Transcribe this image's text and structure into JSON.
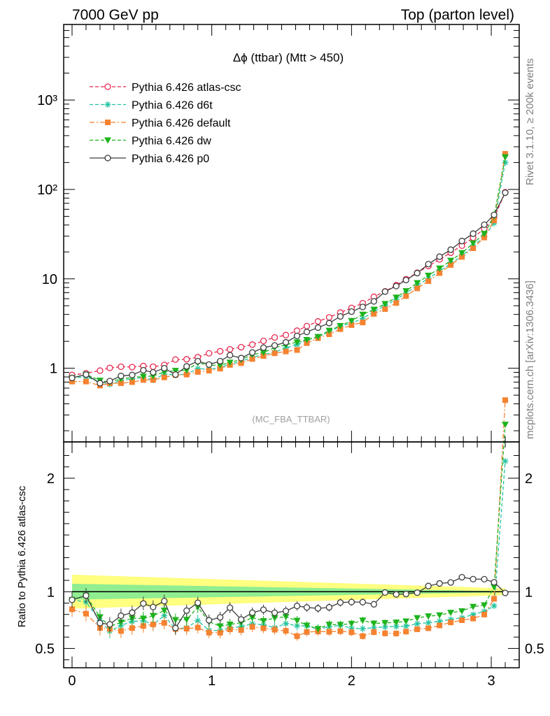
{
  "header": {
    "left_title": "7000 GeV pp",
    "right_title": "Top (parton level)"
  },
  "side_labels": {
    "rivet": "Rivet 3.1.10, ≥ 200k events",
    "mcplots": "mcplots.cern.ch [arXiv:1306.3436]"
  },
  "chart_data": {
    "type": "line",
    "title": "Δϕ (ttbar) (Mtt > 450)",
    "analysis_tag": "(MC_FBA_TTBAR)",
    "main": {
      "yscale": "log",
      "ylim": [
        0.15,
        7000
      ],
      "ytick_labels": [
        "1",
        "10",
        "10²",
        "10³"
      ],
      "ytick_values": [
        1,
        10,
        100,
        1000
      ]
    },
    "ratio": {
      "ylabel": "Ratio to Pythia 6.426 atlas-csc",
      "ylim": [
        0.33,
        2.32
      ],
      "ytick_labels": [
        "0.5",
        "1",
        "2"
      ],
      "ytick_values": [
        0.5,
        1,
        2
      ],
      "band_half_width_start": [
        0.07,
        0.15
      ],
      "band_half_width_end": [
        0.005,
        0.03
      ],
      "band_colors": [
        "#90ee90",
        "#ffff80"
      ]
    },
    "xlim": [
      -0.06,
      3.2
    ],
    "xtick_labels": [
      "0",
      "1",
      "2",
      "3"
    ],
    "xtick_values": [
      0,
      1,
      2,
      3
    ],
    "x": [
      0.0,
      0.1,
      0.2,
      0.27,
      0.35,
      0.43,
      0.51,
      0.58,
      0.66,
      0.74,
      0.82,
      0.9,
      0.98,
      1.06,
      1.13,
      1.21,
      1.29,
      1.37,
      1.45,
      1.53,
      1.61,
      1.68,
      1.76,
      1.84,
      1.92,
      2.0,
      2.08,
      2.16,
      2.24,
      2.32,
      2.39,
      2.47,
      2.55,
      2.63,
      2.71,
      2.79,
      2.87,
      2.95,
      3.02,
      3.1
    ],
    "series": [
      {
        "name": "Pythia 6.426 atlas-csc",
        "color": "#e8294f",
        "marker": "circle-open",
        "dash": "5,3",
        "values": [
          0.84,
          0.88,
          0.94,
          1.01,
          1.04,
          1.03,
          1.06,
          1.04,
          1.09,
          1.25,
          1.26,
          1.33,
          1.47,
          1.55,
          1.63,
          1.72,
          1.84,
          2.02,
          2.21,
          2.35,
          2.63,
          2.96,
          3.34,
          3.71,
          4.2,
          4.73,
          5.34,
          6.3,
          7.25,
          8.5,
          9.9,
          11.7,
          13.9,
          16.5,
          19.6,
          23.5,
          28.8,
          36.3,
          48.0,
          93.0
        ]
      },
      {
        "name": "Pythia 6.426 d6t",
        "color": "#22c4a0",
        "marker": "asterisk",
        "dash": "5,3",
        "values": [
          0.78,
          0.8,
          0.7,
          0.66,
          0.73,
          0.76,
          0.79,
          0.74,
          0.86,
          0.84,
          0.86,
          0.99,
          0.97,
          1.02,
          1.11,
          1.19,
          1.32,
          1.43,
          1.51,
          1.69,
          1.84,
          2.07,
          2.24,
          2.56,
          2.96,
          3.21,
          3.6,
          4.3,
          5.0,
          5.9,
          6.9,
          8.4,
          10.1,
          12.2,
          14.8,
          18.1,
          23.0,
          30.0,
          42.0,
          200.0
        ]
      },
      {
        "name": "Pythia 6.426 default",
        "color": "#f58230",
        "marker": "square",
        "dash": "7,3,2,3",
        "values": [
          0.71,
          0.71,
          0.64,
          0.68,
          0.68,
          0.7,
          0.74,
          0.74,
          0.79,
          0.84,
          0.85,
          0.91,
          0.94,
          0.99,
          1.09,
          1.14,
          1.27,
          1.37,
          1.47,
          1.54,
          1.6,
          1.91,
          2.17,
          2.4,
          2.74,
          3.04,
          3.25,
          4.06,
          4.59,
          5.37,
          6.42,
          7.83,
          9.43,
          11.6,
          14.3,
          17.6,
          22.0,
          29.0,
          45.0,
          250.0
        ]
      },
      {
        "name": "Pythia 6.426 dw",
        "color": "#1db31d",
        "marker": "triangle-down",
        "dash": "5,3",
        "values": [
          0.78,
          0.85,
          0.73,
          0.7,
          0.76,
          0.79,
          0.81,
          0.82,
          0.91,
          0.94,
          0.95,
          1.15,
          1.08,
          1.08,
          1.16,
          1.25,
          1.42,
          1.5,
          1.7,
          1.83,
          1.96,
          2.08,
          2.25,
          2.64,
          2.98,
          3.4,
          3.99,
          4.54,
          5.26,
          6.2,
          7.32,
          9.0,
          10.9,
          13.1,
          16.0,
          19.5,
          25.0,
          32.0,
          50.0,
          230.0
        ]
      },
      {
        "name": "Pythia 6.426 p0",
        "color": "#3d3d3d",
        "marker": "circle-open",
        "dash": "",
        "values": [
          0.78,
          0.85,
          0.68,
          0.72,
          0.82,
          0.84,
          0.95,
          0.9,
          1.0,
          0.85,
          1.05,
          1.2,
          1.1,
          1.2,
          1.4,
          1.3,
          1.5,
          1.7,
          1.8,
          1.95,
          2.3,
          2.55,
          2.85,
          3.2,
          3.8,
          4.3,
          4.85,
          5.6,
          7.2,
          8.3,
          9.7,
          11.6,
          14.6,
          17.7,
          21.2,
          26.5,
          32.0,
          40.3,
          52.0,
          92.0
        ]
      }
    ]
  }
}
